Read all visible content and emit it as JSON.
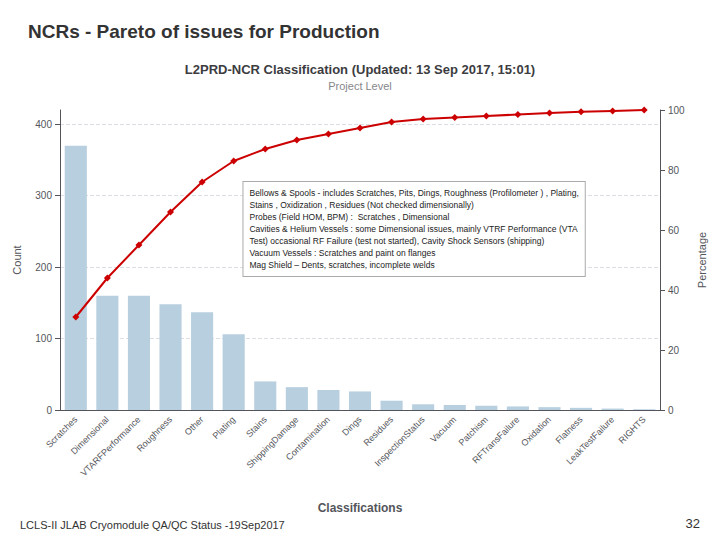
{
  "title": "NCRs - Pareto of issues for Production",
  "footer_left": "LCLS-II JLAB Cryomodule QA/QC Status -19Sep2017",
  "footer_right": "32",
  "chart_data": {
    "type": "bar",
    "title": "L2PRD-NCR Classification (Updated: 13 Sep 2017, 15:01)",
    "subtitle": "Project Level",
    "xlabel": "Classifications",
    "ylabel": "Count",
    "y2label": "Percentage",
    "categories": [
      "Scratches",
      "Dimensional",
      "VTARFPerformance",
      "Roughness",
      "Other",
      "Plating",
      "Stains",
      "ShippingDamage",
      "Contamination",
      "Dings",
      "Residues",
      "InspectionStatus",
      "Vacuum",
      "Patchism",
      "RFTransFailure",
      "Oxidation",
      "Flatness",
      "LeakTestFailure",
      "RIGHTS"
    ],
    "series": [
      {
        "type": "bar",
        "color": "#b8cfdf",
        "values": [
          370,
          160,
          160,
          148,
          137,
          106,
          40,
          32,
          28,
          26,
          13,
          8,
          7,
          6,
          5,
          4,
          3,
          2,
          1
        ]
      },
      {
        "type": "line",
        "axis": "y2",
        "color": "#cc0000",
        "marker": "diamond",
        "values": [
          31,
          44,
          55,
          66,
          76,
          83,
          87,
          90,
          92,
          94,
          96,
          97,
          97.5,
          98,
          98.5,
          99,
          99.4,
          99.7,
          100
        ]
      }
    ],
    "ylim": [
      0,
      420
    ],
    "yticks": [
      0,
      100,
      200,
      300,
      400
    ],
    "y2lim": [
      0,
      100
    ],
    "y2ticks": [
      0,
      20,
      40,
      60,
      80,
      100
    ],
    "grid": true,
    "annotations": [
      "Bellows & Spools - includes Scratches, Pits, Dings, Roughness (Profilometer ) , Plating,",
      "Stains , Oxidization , Residues (Not checked dimensionally)",
      "Probes (Field HOM, BPM) :  Scratches , Dimensional",
      "Cavities & Helium Vessels : some Dimensional issues, mainly VTRF Performance (VTA",
      "Test) occasional RF Failure (test not started), Cavity Shock Sensors (shipping)",
      "Vacuum Vessels : Scratches and paint on flanges",
      "Mag Shield – Dents, scratches, incomplete welds"
    ]
  }
}
